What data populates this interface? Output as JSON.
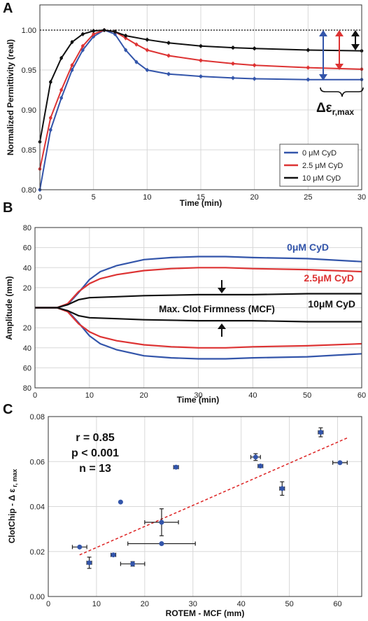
{
  "figure": {
    "panel_labels": [
      "A",
      "B",
      "C"
    ]
  },
  "chart_data": [
    {
      "panel": "A",
      "type": "line",
      "xlabel": "Time (min)",
      "ylabel": "Normalized Permittivity (real)",
      "xlim": [
        0,
        30
      ],
      "ylim": [
        0.8,
        1.0
      ],
      "xticks": [
        0,
        5,
        10,
        15,
        20,
        25,
        30
      ],
      "yticks": [
        "0.80",
        "0.85",
        "0.90",
        "0.95",
        "1.00"
      ],
      "grid": true,
      "legend": "bottom-right",
      "annotation": "Δε",
      "annotation_sub": "r,max",
      "series": [
        {
          "name": "0 μM CyD",
          "color": "#3355aa",
          "x": [
            0,
            1,
            2,
            3,
            4,
            5,
            6,
            7,
            8,
            9,
            10,
            12,
            15,
            18,
            20,
            25,
            30
          ],
          "y": [
            0.8,
            0.875,
            0.915,
            0.95,
            0.975,
            0.992,
            1.0,
            0.995,
            0.975,
            0.96,
            0.95,
            0.945,
            0.942,
            0.94,
            0.939,
            0.938,
            0.938
          ]
        },
        {
          "name": "2.5 μM CyD",
          "color": "#dd3333",
          "x": [
            0,
            1,
            2,
            3,
            4,
            5,
            6,
            7,
            8,
            9,
            10,
            12,
            15,
            18,
            20,
            25,
            30
          ],
          "y": [
            0.826,
            0.89,
            0.925,
            0.956,
            0.98,
            0.995,
            1.0,
            0.998,
            0.99,
            0.982,
            0.975,
            0.968,
            0.962,
            0.958,
            0.956,
            0.953,
            0.951
          ]
        },
        {
          "name": "10 μM CyD",
          "color": "#111111",
          "x": [
            0,
            1,
            2,
            3,
            4,
            5,
            6,
            7,
            8,
            10,
            12,
            15,
            18,
            20,
            25,
            30
          ],
          "y": [
            0.86,
            0.935,
            0.965,
            0.985,
            0.995,
            0.999,
            1.0,
            0.998,
            0.993,
            0.988,
            0.984,
            0.98,
            0.978,
            0.977,
            0.975,
            0.974
          ]
        }
      ]
    },
    {
      "panel": "B",
      "type": "line",
      "xlabel": "Time (min)",
      "ylabel": "Amplitude (mm)",
      "xlim": [
        0,
        60
      ],
      "ylim": [
        -80,
        80
      ],
      "xticks": [
        0,
        10,
        20,
        30,
        40,
        50,
        60
      ],
      "yticks": [
        "80",
        "60",
        "40",
        "20",
        "",
        "20",
        "40",
        "60",
        "80"
      ],
      "grid": true,
      "legend": "right",
      "annotation": "Max. Clot Firmness (MCF)",
      "series": [
        {
          "name": "0μM CyD",
          "color": "#3355aa",
          "x": [
            0,
            4,
            6,
            8,
            10,
            12,
            15,
            20,
            25,
            30,
            35,
            40,
            50,
            60
          ],
          "y": [
            0,
            0,
            3,
            15,
            28,
            36,
            42,
            48,
            50,
            51,
            51,
            50,
            49,
            46
          ]
        },
        {
          "name": "2.5μM CyD",
          "color": "#dd3333",
          "x": [
            0,
            4,
            6,
            8,
            10,
            12,
            15,
            20,
            25,
            30,
            35,
            40,
            50,
            60
          ],
          "y": [
            0,
            0,
            4,
            16,
            24,
            29,
            33,
            37,
            39,
            40,
            40,
            39,
            38,
            36
          ]
        },
        {
          "name": "10μM CyD",
          "color": "#111111",
          "x": [
            0,
            4,
            6,
            8,
            10,
            15,
            20,
            30,
            40,
            50,
            60
          ],
          "y": [
            0,
            0,
            3,
            8,
            10,
            11,
            12,
            13,
            13,
            14,
            14
          ]
        }
      ]
    },
    {
      "panel": "C",
      "type": "scatter",
      "xlabel": "ROTEM - MCF (mm)",
      "ylabel": "ClotChip - Δ ε",
      "ylabel_sub": "r, max",
      "xlim": [
        0,
        65
      ],
      "ylim": [
        0.0,
        0.08
      ],
      "xticks": [
        0,
        10,
        20,
        30,
        40,
        50,
        60
      ],
      "yticks": [
        "0.00",
        "0.02",
        "0.04",
        "0.06",
        "0.08"
      ],
      "grid": true,
      "stats": [
        "r = 0.85",
        "p < 0.001",
        "n = 13"
      ],
      "points": [
        {
          "x": 6.5,
          "y": 0.022,
          "xerr": 1.5,
          "yerr": 0
        },
        {
          "x": 8.5,
          "y": 0.015,
          "xerr": 0.5,
          "yerr": 0.0025
        },
        {
          "x": 13.5,
          "y": 0.0185,
          "xerr": 0.5,
          "yerr": 0.0005
        },
        {
          "x": 15,
          "y": 0.042,
          "xerr": 0,
          "yerr": 0
        },
        {
          "x": 17.5,
          "y": 0.0145,
          "xerr": 2.5,
          "yerr": 0.001
        },
        {
          "x": 23.5,
          "y": 0.033,
          "xerr": 3.5,
          "yerr": 0.006
        },
        {
          "x": 23.5,
          "y": 0.0235,
          "xerr": 7.0,
          "yerr": 0
        },
        {
          "x": 26.5,
          "y": 0.0575,
          "xerr": 0.5,
          "yerr": 0.0005
        },
        {
          "x": 43,
          "y": 0.062,
          "xerr": 1.0,
          "yerr": 0.0015
        },
        {
          "x": 44,
          "y": 0.058,
          "xerr": 0.5,
          "yerr": 0
        },
        {
          "x": 48.5,
          "y": 0.048,
          "xerr": 0.5,
          "yerr": 0.003
        },
        {
          "x": 56.5,
          "y": 0.073,
          "xerr": 0.5,
          "yerr": 0.002
        },
        {
          "x": 60.5,
          "y": 0.0595,
          "xerr": 1.5,
          "yerr": 0
        }
      ],
      "fit": {
        "x": [
          6.5,
          62
        ],
        "y": [
          0.0185,
          0.0705
        ],
        "color": "#dd2222"
      }
    }
  ]
}
